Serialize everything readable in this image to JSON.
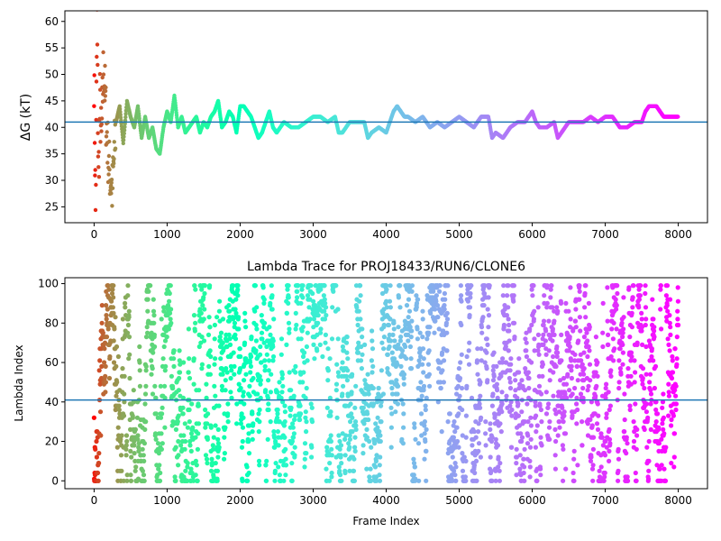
{
  "chart_data": [
    {
      "type": "scatter",
      "title": "",
      "xlabel": "",
      "ylabel": "ΔG (kT)",
      "xlim": [
        -400,
        8400
      ],
      "ylim": [
        22,
        62
      ],
      "xticks": [
        0,
        1000,
        2000,
        3000,
        4000,
        5000,
        6000,
        7000,
        8000
      ],
      "yticks": [
        25,
        30,
        35,
        40,
        45,
        50,
        55,
        60
      ],
      "hline": 41,
      "hline_color": "#1f77b4",
      "colormap": "rainbow",
      "grid": false,
      "trace": {
        "x": [
          0,
          20,
          40,
          60,
          80,
          100,
          130,
          160,
          200,
          250,
          300,
          350,
          400,
          450,
          500,
          550,
          600,
          650,
          700,
          750,
          800,
          850,
          900,
          950,
          1000,
          1050,
          1100,
          1150,
          1200,
          1250,
          1300,
          1350,
          1400,
          1450,
          1500,
          1550,
          1600,
          1650,
          1700,
          1750,
          1800,
          1850,
          1900,
          1950,
          2000,
          2050,
          2100,
          2150,
          2200,
          2250,
          2300,
          2350,
          2400,
          2450,
          2500,
          2600,
          2700,
          2800,
          2900,
          3000,
          3100,
          3200,
          3300,
          3350,
          3400,
          3500,
          3600,
          3700,
          3750,
          3800,
          3900,
          4000,
          4100,
          4150,
          4200,
          4250,
          4300,
          4400,
          4500,
          4600,
          4700,
          4800,
          4900,
          5000,
          5100,
          5200,
          5300,
          5400,
          5450,
          5500,
          5600,
          5700,
          5800,
          5900,
          6000,
          6050,
          6100,
          6200,
          6300,
          6350,
          6400,
          6500,
          6600,
          6700,
          6800,
          6900,
          7000,
          7050,
          7100,
          7200,
          7300,
          7400,
          7500,
          7550,
          7600,
          7700,
          7750,
          7800,
          7900,
          8000
        ],
        "y": [
          50,
          24,
          60,
          30,
          45,
          37,
          52,
          43,
          33,
          28,
          41,
          44,
          37,
          45,
          42,
          40,
          44,
          38,
          42,
          38,
          40,
          36,
          35,
          40,
          43,
          41,
          46,
          40,
          42,
          39,
          40,
          41,
          42,
          39,
          41,
          40,
          42,
          43,
          45,
          40,
          41,
          43,
          42,
          39,
          44,
          44,
          43,
          42,
          40,
          38,
          39,
          41,
          43,
          40,
          39,
          41,
          40,
          40,
          41,
          42,
          42,
          41,
          42,
          39,
          39,
          41,
          41,
          41,
          38,
          39,
          40,
          39,
          43,
          44,
          43,
          42,
          42,
          41,
          42,
          40,
          41,
          40,
          41,
          42,
          41,
          40,
          42,
          42,
          38,
          39,
          38,
          40,
          41,
          41,
          43,
          41,
          40,
          40,
          41,
          38,
          39,
          41,
          41,
          41,
          42,
          41,
          42,
          42,
          42,
          40,
          40,
          41,
          41,
          43,
          44,
          44,
          43,
          42,
          42,
          42
        ]
      }
    },
    {
      "type": "scatter",
      "title": "Lambda Trace for PROJ18433/RUN6/CLONE6",
      "xlabel": "Frame Index",
      "ylabel": "Lambda Index",
      "xlim": [
        -400,
        8400
      ],
      "ylim": [
        -4,
        103
      ],
      "xticks": [
        0,
        1000,
        2000,
        3000,
        4000,
        5000,
        6000,
        7000,
        8000
      ],
      "yticks": [
        0,
        20,
        40,
        60,
        80,
        100
      ],
      "hline": 41,
      "hline_color": "#1f77b4",
      "colormap": "rainbow",
      "grid": false,
      "lambda_range": [
        0,
        99
      ],
      "frame_range": [
        0,
        8000
      ],
      "point_count": 3000
    }
  ]
}
